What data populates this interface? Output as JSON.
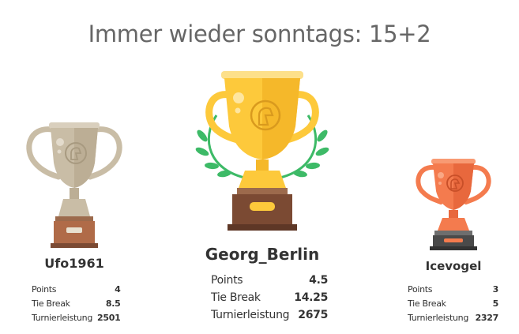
{
  "title": "Immer wieder sonntags: 15+2",
  "podium": [
    {
      "place": 2,
      "name": "Ufo1961",
      "trophy_icon": "silver-trophy-icon",
      "stats": [
        {
          "label": "Points",
          "value": "4"
        },
        {
          "label": "Tie Break",
          "value": "8.5"
        },
        {
          "label": "Turnierleistung",
          "value": "2501"
        }
      ]
    },
    {
      "place": 1,
      "name": "Georg_Berlin",
      "trophy_icon": "gold-trophy-icon",
      "stats": [
        {
          "label": "Points",
          "value": "4.5"
        },
        {
          "label": "Tie Break",
          "value": "14.25"
        },
        {
          "label": "Turnierleistung",
          "value": "2675"
        }
      ]
    },
    {
      "place": 3,
      "name": "Icevogel",
      "trophy_icon": "bronze-trophy-icon",
      "stats": [
        {
          "label": "Points",
          "value": "3"
        },
        {
          "label": "Tie Break",
          "value": "5"
        },
        {
          "label": "Turnierleistung",
          "value": "2327"
        }
      ]
    }
  ],
  "colors": {
    "gold": "#fdc93b",
    "silver": "#c9bda6",
    "bronze": "#f47b4e",
    "laurel": "#3dba67",
    "base_brown": "#7b4a33"
  }
}
